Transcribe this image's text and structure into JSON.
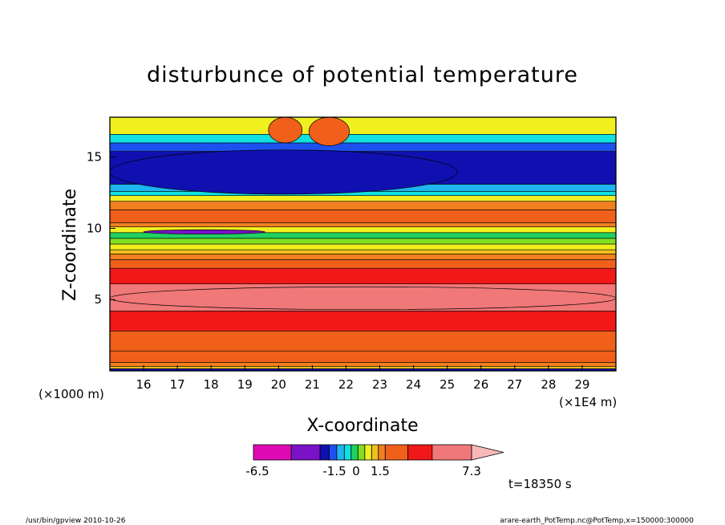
{
  "chart_data": {
    "type": "heatmap",
    "subtype": "filled-contour",
    "title": "disturbunce of potential temperature",
    "xlabel": "X-coordinate",
    "ylabel": "Z-coordinate",
    "x_unit_left": "(×1000 m)",
    "x_unit_right": "(×1E4 m)",
    "xlim": [
      15,
      30
    ],
    "ylim": [
      0,
      17.8
    ],
    "xticks": [
      "16",
      "17",
      "18",
      "19",
      "20",
      "21",
      "22",
      "23",
      "24",
      "25",
      "26",
      "27",
      "28",
      "29"
    ],
    "yticks": [
      "5",
      "10",
      "15"
    ],
    "colorbar": {
      "labels": [
        "-6.5",
        "-1.5",
        "0",
        "1.5",
        "7.3"
      ],
      "levels": [
        -6.5,
        -4.5,
        -3.5,
        -2.5,
        -1.5,
        -1.0,
        -0.5,
        0,
        0.5,
        1.0,
        1.5,
        2.5,
        3.5,
        4.5,
        7.3
      ],
      "colors": [
        "#e00ab4",
        "#7a12c8",
        "#1010b0",
        "#1e50f0",
        "#1eb4f0",
        "#10e0e0",
        "#20d060",
        "#80e020",
        "#f0f020",
        "#f0c020",
        "#f08020",
        "#f0601a",
        "#f01818",
        "#f07878",
        "#f8b8b8"
      ]
    },
    "bands": [
      {
        "z": [
          0,
          0.15
        ],
        "value": -3.0
      },
      {
        "z": [
          0.15,
          0.3
        ],
        "value": 1.2
      },
      {
        "z": [
          0.3,
          0.6
        ],
        "value": 2.0
      },
      {
        "z": [
          0.6,
          1.4
        ],
        "value": 2.5
      },
      {
        "z": [
          1.4,
          2.8
        ],
        "value": 3.3
      },
      {
        "z": [
          2.8,
          4.2
        ],
        "value": 4.2
      },
      {
        "z": [
          4.2,
          6.1
        ],
        "value": 5.8
      },
      {
        "z": [
          6.1,
          7.2
        ],
        "value": 4.2
      },
      {
        "z": [
          7.2,
          7.8
        ],
        "value": 3.3
      },
      {
        "z": [
          7.8,
          8.2
        ],
        "value": 2.0
      },
      {
        "z": [
          8.2,
          8.5
        ],
        "value": 1.2
      },
      {
        "z": [
          8.5,
          8.9
        ],
        "value": 0.8
      },
      {
        "z": [
          8.9,
          9.3
        ],
        "value": 0.3
      },
      {
        "z": [
          9.3,
          9.7
        ],
        "value": -0.3
      },
      {
        "z": [
          9.7,
          10.1
        ],
        "value": 0.8
      },
      {
        "z": [
          10.1,
          10.4
        ],
        "value": 2.2
      },
      {
        "z": [
          10.4,
          11.3
        ],
        "value": 3.0
      },
      {
        "z": [
          11.3,
          11.9
        ],
        "value": 2.0
      },
      {
        "z": [
          11.9,
          12.3
        ],
        "value": 0.8
      },
      {
        "z": [
          12.3,
          12.6
        ],
        "value": -0.7
      },
      {
        "z": [
          12.6,
          13.1
        ],
        "value": -1.3
      },
      {
        "z": [
          13.1,
          15.4
        ],
        "value": -3.0
      },
      {
        "z": [
          15.4,
          16.0
        ],
        "value": -2.0
      },
      {
        "z": [
          16.0,
          16.6
        ],
        "value": -0.8
      },
      {
        "z": [
          16.6,
          17.8
        ],
        "value": 0.8
      }
    ],
    "features": [
      {
        "name": "upper-negative-tongue",
        "x": [
          15.0,
          25.3
        ],
        "z": [
          12.4,
          15.5
        ],
        "value": -3.5
      },
      {
        "name": "warm-cell-left",
        "x": [
          19.7,
          20.7
        ],
        "z": [
          16.0,
          17.8
        ],
        "value": 2.5
      },
      {
        "name": "warm-cell-right",
        "x": [
          20.9,
          22.1
        ],
        "z": [
          15.8,
          17.8
        ],
        "value": 3.0
      },
      {
        "name": "cold-strip",
        "x": [
          16.0,
          19.6
        ],
        "z": [
          9.6,
          9.9
        ],
        "value": -4.0
      },
      {
        "name": "warm-core",
        "x": [
          15.0,
          30.0
        ],
        "z": [
          4.3,
          5.9
        ],
        "value": 6.5
      }
    ],
    "annotation": "t=18350 s",
    "footer_left": "/usr/bin/gpview   2010-10-26",
    "footer_right": "arare-earth_PotTemp.nc@PotTemp,x=150000:300000"
  }
}
